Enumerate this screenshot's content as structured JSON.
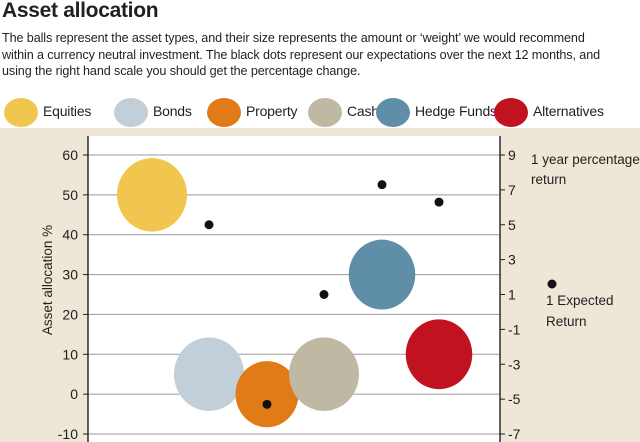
{
  "title": "Asset allocation",
  "subtitle_lines": [
    "The balls represent the asset types, and their size represents the amount or ‘weight’ we would recommend",
    "within a currency neutral investment. The black dots represent our expectations over the next 12 months, and",
    "using the right hand scale you should get the percentage change."
  ],
  "legend": [
    {
      "label": "Equities",
      "color": "#f0c64e"
    },
    {
      "label": "Bonds",
      "color": "#c2cfd9"
    },
    {
      "label": "Property",
      "color": "#e07b17"
    },
    {
      "label": "Cash",
      "color": "#bfb9a3"
    },
    {
      "label": "Hedge Funds",
      "color": "#5f8fa8"
    },
    {
      "label": "Alternatives",
      "color": "#c0131f"
    }
  ],
  "chart_data": {
    "type": "scatter",
    "title": "Asset allocation",
    "ylabel": "Asset allocation %",
    "y2label_lines": [
      "1 year percentage",
      "return"
    ],
    "ylim": [
      -10,
      60
    ],
    "y2lim": [
      -7,
      9
    ],
    "yticks": [
      -10,
      0,
      10,
      20,
      30,
      40,
      50,
      60
    ],
    "y2ticks": [
      -7,
      -5,
      -3,
      -1,
      1,
      3,
      5,
      7,
      9
    ],
    "grid": true,
    "series": [
      {
        "name": "Asset allocation",
        "axis": "left",
        "marker": "ball",
        "points": [
          {
            "asset": "Equities",
            "x": 1,
            "y": 50,
            "weight": 1.0
          },
          {
            "asset": "Bonds",
            "x": 2,
            "y": 5,
            "weight": 1.0
          },
          {
            "asset": "Property",
            "x": 3,
            "y": 0,
            "weight": 0.9
          },
          {
            "asset": "Cash",
            "x": 4,
            "y": 5,
            "weight": 1.0
          },
          {
            "asset": "Hedge Funds",
            "x": 5,
            "y": 30,
            "weight": 0.95
          },
          {
            "asset": "Alternatives",
            "x": 6,
            "y": 10,
            "weight": 0.95
          }
        ]
      },
      {
        "name": "1 Expected Return",
        "axis": "right",
        "marker": "dot",
        "points": [
          {
            "x": 1.5,
            "y": 5
          },
          {
            "x": 3,
            "y": -5.3
          },
          {
            "x": 3.5,
            "y": 1
          },
          {
            "x": 4.5,
            "y": 7.3
          },
          {
            "x": 5.5,
            "y": 6.3
          }
        ]
      }
    ],
    "annotation_lines": [
      "1 Expected",
      "Return"
    ]
  }
}
